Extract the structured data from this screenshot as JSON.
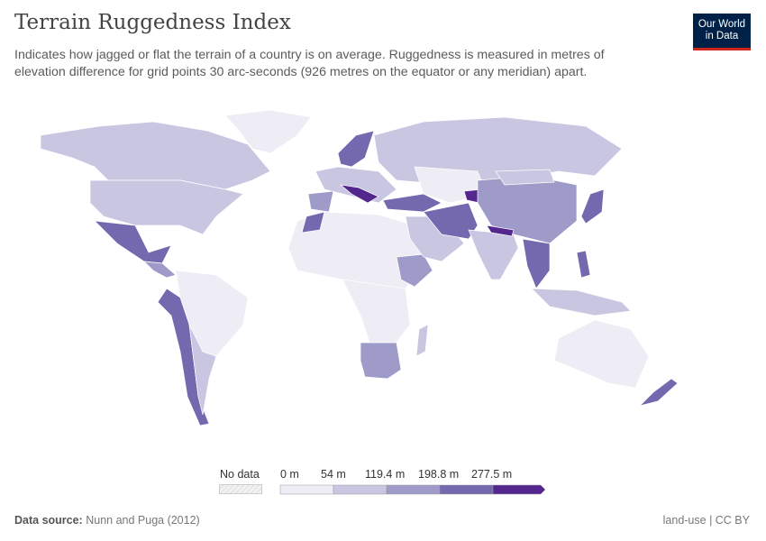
{
  "header": {
    "title": "Terrain Ruggedness Index",
    "subtitle": "Indicates how jagged or flat the terrain of a country is on average. Ruggedness is measured in metres of elevation difference for grid points 30 arc-seconds (926 metres on the equator or any meridian) apart.",
    "logo_text": "Our World in Data"
  },
  "legend": {
    "no_data_label": "No data",
    "bins": [
      "0 m",
      "54 m",
      "119.4 m",
      "198.8 m",
      "277.5 m"
    ],
    "colors": [
      "#eeedf5",
      "#c8c6e1",
      "#9e9bc9",
      "#7468ae",
      "#54278f"
    ],
    "no_data_color": "#eeeeee"
  },
  "footer": {
    "source_label": "Data source:",
    "source": "Nunn and Puga (2012)",
    "license": "land-use | CC BY"
  }
}
